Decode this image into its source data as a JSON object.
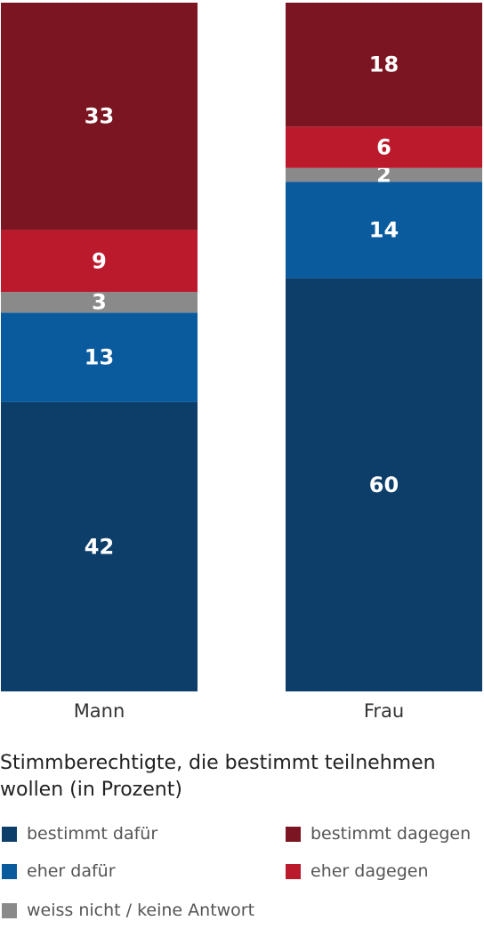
{
  "chart_data": {
    "type": "bar",
    "stacked": true,
    "title": "Stimmberechtigte, die bestimmt teilnehmen wollen (in Prozent)",
    "categories": [
      "Mann",
      "Frau"
    ],
    "ylim": [
      0,
      100
    ],
    "series": [
      {
        "name": "bestimmt dafür",
        "color": "#0d3e69",
        "values": [
          42,
          60
        ]
      },
      {
        "name": "eher dafür",
        "color": "#0a5a9e",
        "values": [
          13,
          14
        ]
      },
      {
        "name": "weiss nicht / keine Antwort",
        "color": "#8a8a8a",
        "values": [
          3,
          2
        ]
      },
      {
        "name": "eher dagegen",
        "color": "#bb1a2d",
        "values": [
          9,
          6
        ]
      },
      {
        "name": "bestimmt dagegen",
        "color": "#7a1521",
        "values": [
          33,
          18
        ]
      }
    ],
    "legend": [
      {
        "label": "bestimmt dafür",
        "color": "#0d3e69"
      },
      {
        "label": "bestimmt dagegen",
        "color": "#7a1521"
      },
      {
        "label": "eher dafür",
        "color": "#0a5a9e"
      },
      {
        "label": "eher dagegen",
        "color": "#bb1a2d"
      },
      {
        "label": "weiss nicht / keine Antwort",
        "color": "#8a8a8a"
      }
    ]
  }
}
